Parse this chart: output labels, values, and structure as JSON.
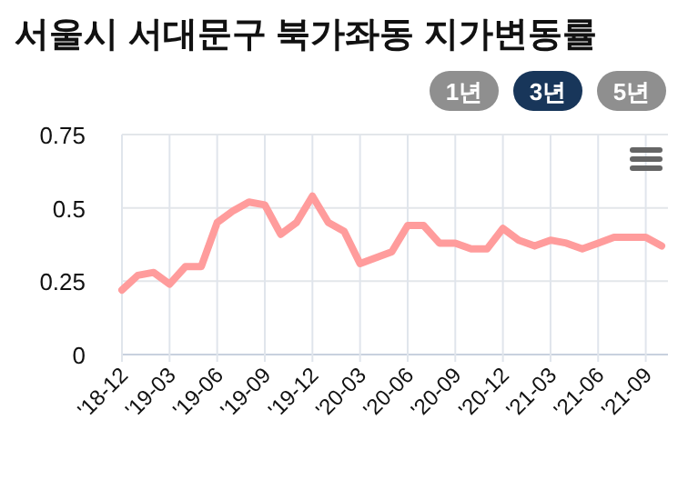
{
  "chart_data": {
    "type": "line",
    "title": "서울시 서대문구 북가좌동 지가변동률",
    "annotations": [
      "1년",
      "3년",
      "5년"
    ],
    "categories": [
      "'18-12",
      null,
      null,
      "'19-03",
      null,
      null,
      "'19-06",
      null,
      null,
      "'19-09",
      null,
      null,
      "'19-12",
      null,
      null,
      "'20-03",
      null,
      null,
      "'20-06",
      null,
      null,
      "'20-09",
      null,
      null,
      "'20-12",
      null,
      null,
      "'21-03",
      null,
      null,
      "'21-06",
      null,
      null,
      "'21-09",
      null
    ],
    "series": [
      {
        "color": "#ff9c9c",
        "values": [
          0.22,
          0.27,
          0.28,
          0.24,
          0.3,
          0.3,
          0.45,
          0.49,
          0.52,
          0.51,
          0.41,
          0.45,
          0.54,
          0.45,
          0.42,
          0.31,
          0.33,
          0.35,
          0.44,
          0.44,
          0.38,
          0.38,
          0.36,
          0.36,
          0.43,
          0.39,
          0.37,
          0.39,
          0.38,
          0.36,
          0.38,
          0.4,
          0.4,
          0.4,
          0.37
        ]
      }
    ],
    "ylim": [
      0,
      0.75
    ],
    "yticks": [
      0,
      0.25,
      0.5,
      0.75
    ],
    "grid": true,
    "marker": "none",
    "line_style": "solid"
  }
}
